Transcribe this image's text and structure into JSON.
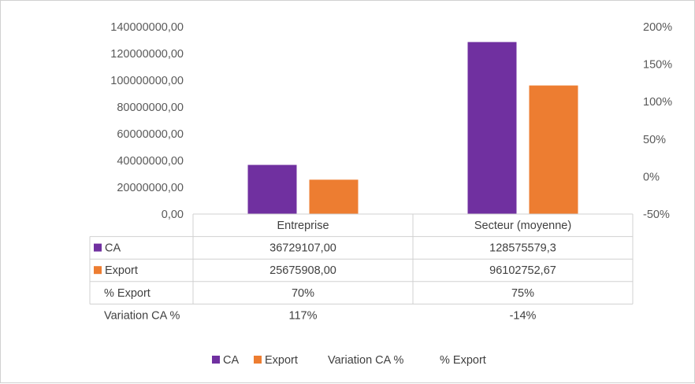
{
  "chart_data": {
    "type": "bar",
    "categories": [
      "Entreprise",
      "Secteur (moyenne)"
    ],
    "series": [
      {
        "name": "CA",
        "values": [
          36729107.0,
          128575579.3
        ],
        "labels": [
          "36729107,00",
          "128575579,3"
        ],
        "color": "#7030a0",
        "axis": "primary",
        "kind": "bar"
      },
      {
        "name": "Export",
        "values": [
          25675908.0,
          96102752.67
        ],
        "labels": [
          "25675908,00",
          "96102752,67"
        ],
        "color": "#ed7d31",
        "axis": "primary",
        "kind": "bar"
      },
      {
        "name": "% Export",
        "values": [
          70,
          75
        ],
        "labels": [
          "70%",
          "75%"
        ],
        "axis": "secondary",
        "kind": "line"
      },
      {
        "name": "Variation CA %",
        "values": [
          117,
          -14
        ],
        "labels": [
          "117%",
          "-14%"
        ],
        "axis": "secondary",
        "kind": "line"
      }
    ],
    "table_row_order": [
      "CA",
      "Export",
      "% Export",
      "Variation CA %"
    ],
    "legend_order": [
      "CA",
      "Export",
      "Variation CA %",
      "% Export"
    ],
    "ylim": [
      0,
      140000000
    ],
    "yticks": [
      "0,00",
      "20000000,00",
      "40000000,00",
      "60000000,00",
      "80000000,00",
      "100000000,00",
      "120000000,00",
      "140000000,00"
    ],
    "y2lim": [
      -50,
      200
    ],
    "y2ticks": [
      "-50%",
      "0%",
      "50%",
      "100%",
      "150%",
      "200%"
    ],
    "title": "",
    "xlabel": "",
    "ylabel": "",
    "grid": false,
    "legend_position": "bottom",
    "data_table": true
  }
}
